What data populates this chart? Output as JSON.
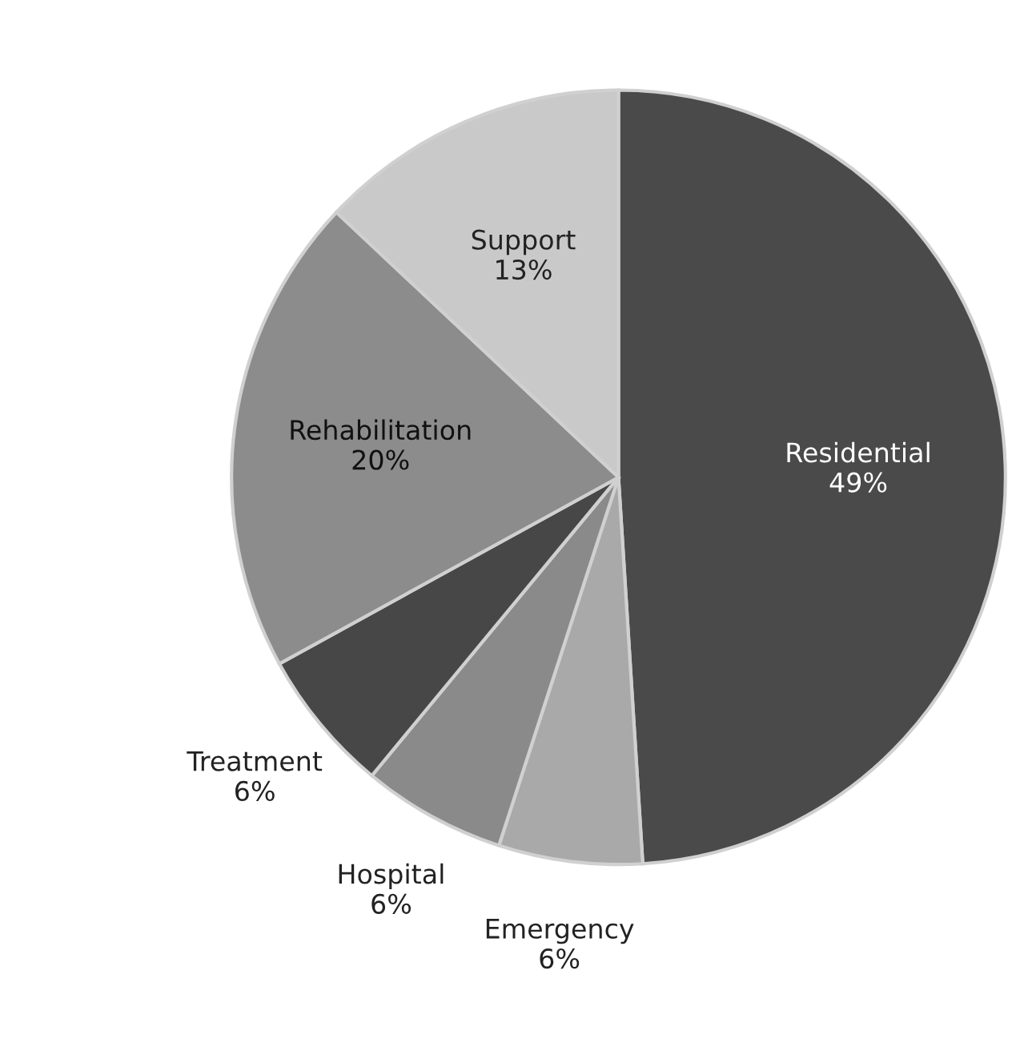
{
  "chart_data": {
    "type": "pie",
    "categories": [
      "Residential",
      "Emergency",
      "Hospital",
      "Treatment",
      "Rehabilitation",
      "Support"
    ],
    "values": [
      49,
      6,
      6,
      6,
      20,
      13
    ],
    "value_labels": [
      "49%",
      "6%",
      "6%",
      "6%",
      "20%",
      "13%"
    ],
    "colors": [
      "#4a4a4a",
      "#a9a9a9",
      "#8a8a8a",
      "#474747",
      "#8c8c8c",
      "#c9c9c9"
    ],
    "legend": false
  }
}
